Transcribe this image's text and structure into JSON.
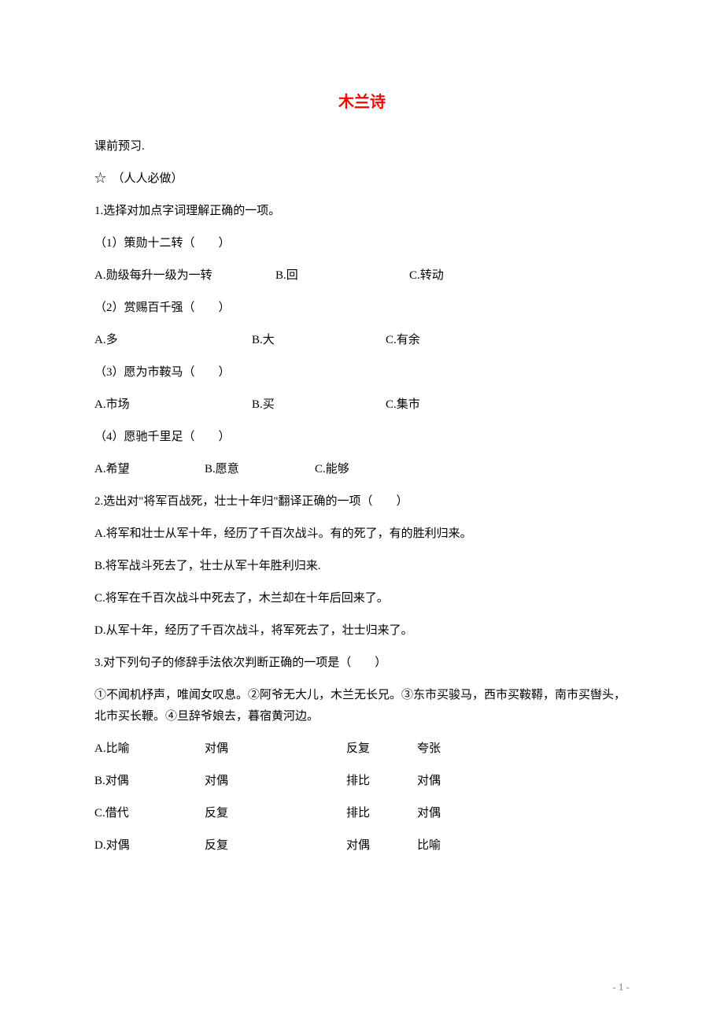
{
  "title": "木兰诗",
  "preview_label": "课前预习.",
  "mandatory_label": "☆　（人人必做）",
  "q1": {
    "stem": "1.选择对加点字词理解正确的一项。",
    "items": [
      {
        "prompt": "（1）策勋十二转（　　）",
        "opts": {
          "a": "A.勋级每升一级为一转",
          "b": "B.回",
          "c": "C.转动"
        },
        "col_w": {
          "a": 230,
          "b": 170,
          "c": 120
        }
      },
      {
        "prompt": "（2）赏赐百千强（　　）",
        "opts": {
          "a": "A.多",
          "b": "B.大",
          "c": "C.有余"
        },
        "col_w": {
          "a": 200,
          "b": 170,
          "c": 120
        }
      },
      {
        "prompt": "（3）愿为市鞍马（　　）",
        "opts": {
          "a": "A.市场",
          "b": "B.买",
          "c": "C.集市"
        },
        "col_w": {
          "a": 200,
          "b": 170,
          "c": 120
        }
      },
      {
        "prompt": "（4）愿驰千里足（　　）",
        "opts": {
          "a": "A.希望",
          "b": "B.愿意",
          "c": "C.能够"
        },
        "col_w": {
          "a": 140,
          "b": 140,
          "c": 120
        }
      }
    ]
  },
  "q2": {
    "stem": "2.选出对\"将军百战死，壮士十年归\"翻译正确的一项（　　）",
    "opts": [
      "A.将军和壮士从军十年，经历了千百次战斗。有的死了，有的胜利归来。",
      "B.将军战斗死去了，壮士从军十年胜利归来.",
      "C.将军在千百次战斗中死去了，木兰却在十年后回来了。",
      "D.从军十年，经历了千百次战斗，将军死去了，壮士归来了。"
    ]
  },
  "q3": {
    "stem": "3.对下列句子的修辞手法依次判断正确的一项是（　　）",
    "detail": "①不闻机杼声，唯闻女叹息。②阿爷无大儿，木兰无长兄。③东市买骏马，西市买鞍鞯，南市买辔头，北市买长鞭。④旦辞爷娘去，暮宿黄河边。",
    "opts": [
      {
        "label": "A.比喻",
        "c2": "对偶",
        "c3": "反复",
        "c4": "夸张"
      },
      {
        "label": "B.对偶",
        "c2": "对偶",
        "c3": "排比",
        "c4": "对偶"
      },
      {
        "label": "C.借代",
        "c2": "反复",
        "c3": "排比",
        "c4": "对偶"
      },
      {
        "label": "D.对偶",
        "c2": "反复",
        "c3": "对偶",
        "c4": "比喻"
      }
    ],
    "col_w": {
      "c1": 140,
      "c2": 180,
      "c3": 90,
      "c4": 80
    }
  },
  "page_number": "- 1 -"
}
